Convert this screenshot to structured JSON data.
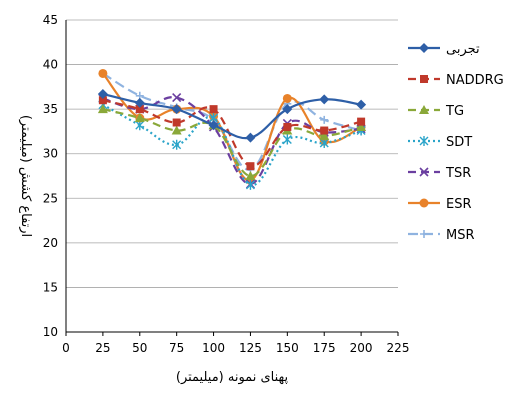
{
  "chart_data": {
    "type": "line",
    "xlabel": "پهنای نمونه (میلیمتر)",
    "ylabel": "ارتفاع کشش (میلیمتر)",
    "xlim": [
      0,
      225
    ],
    "ylim": [
      10,
      45
    ],
    "x_ticks": [
      "0",
      "25",
      "50",
      "75",
      "100",
      "125",
      "150",
      "175",
      "200",
      "225"
    ],
    "y_ticks": [
      "10",
      "15",
      "20",
      "25",
      "30",
      "35",
      "40",
      "45"
    ],
    "grid": "horizontal",
    "legend_position": "right",
    "x": [
      25,
      50,
      75,
      100,
      125,
      150,
      175,
      200
    ],
    "series": [
      {
        "name": "تجربی",
        "color": "#2e5fa7",
        "dash": "solid",
        "marker": "diamond",
        "values": [
          36.7,
          35.7,
          35.0,
          33.2,
          31.8,
          35.0,
          36.1,
          35.5
        ]
      },
      {
        "name": "NADDRG",
        "color": "#c0392b",
        "dash": "8,5",
        "marker": "square",
        "values": [
          36.0,
          35.0,
          33.5,
          35.0,
          28.6,
          33.0,
          32.6,
          33.6
        ]
      },
      {
        "name": "TG",
        "color": "#8aa839",
        "dash": "8,5",
        "marker": "triangle",
        "values": [
          35.0,
          34.0,
          32.6,
          33.2,
          27.5,
          32.6,
          32.0,
          33.0
        ]
      },
      {
        "name": "SDT",
        "color": "#2aa4c9",
        "dash": "2,3",
        "marker": "star",
        "values": [
          35.5,
          33.2,
          31.0,
          34.0,
          26.5,
          31.6,
          31.2,
          32.6
        ]
      },
      {
        "name": "TSR",
        "color": "#6b3fa0",
        "dash": "8,5",
        "marker": "x",
        "values": [
          36.2,
          35.0,
          36.3,
          33.0,
          26.6,
          33.4,
          32.4,
          32.8
        ]
      },
      {
        "name": "ESR",
        "color": "#e8822a",
        "dash": "solid",
        "marker": "circle",
        "values": [
          39.0,
          34.0,
          35.0,
          34.2,
          27.0,
          36.2,
          31.4,
          33.0
        ]
      },
      {
        "name": "MSR",
        "color": "#8fb3e0",
        "dash": "10,5",
        "marker": "plus",
        "values": [
          39.0,
          36.5,
          35.2,
          33.8,
          28.2,
          35.6,
          33.8,
          32.6
        ]
      }
    ]
  }
}
